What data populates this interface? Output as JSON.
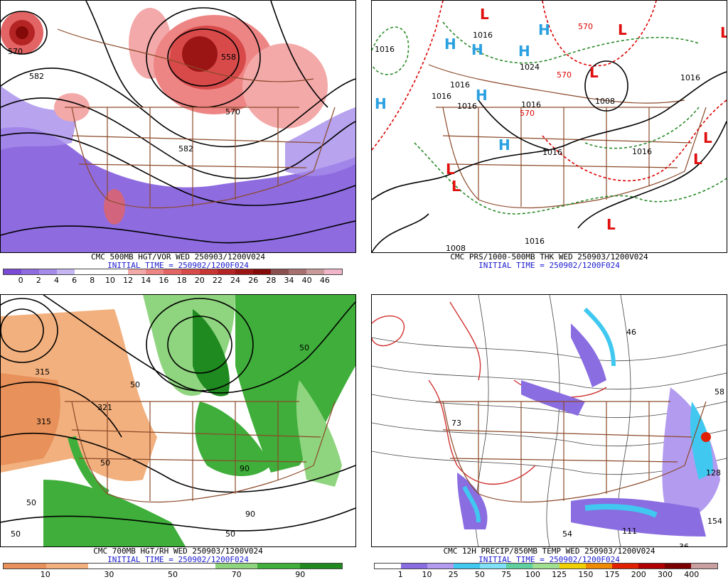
{
  "panels": [
    {
      "id": "vorticity",
      "caption": "CMC 500MB HGT/VOR WED 250903/1200V024",
      "initial_time": "INITIAL TIME = 250902/1200F024",
      "colorbar": {
        "colors": [
          "#7a4ad6",
          "#8f6be0",
          "#a58cea",
          "#c5b6f2",
          "#ffffff",
          "#ffffff",
          "#ffffff",
          "#f4a9a9",
          "#ee8585",
          "#e26464",
          "#d84a4a",
          "#c83535",
          "#b42424",
          "#9c1515",
          "#840a0a",
          "#8a4f4f",
          "#a86f6f",
          "#c99a9a",
          "#f0b6c8"
        ],
        "ticks": [
          "0",
          "2",
          "4",
          "6",
          "8",
          "10",
          "12",
          "14",
          "16",
          "18",
          "20",
          "22",
          "24",
          "26",
          "28",
          "34",
          "40",
          "46"
        ]
      },
      "contour_labels": [
        "570",
        "582",
        "558",
        "570",
        "582"
      ]
    },
    {
      "id": "pressure",
      "caption": "CMC PRS/1000-500MB THK WED 250903/1200V024",
      "initial_time": "INITIAL TIME = 250902/1200F024",
      "isobar_labels": [
        "1016",
        "1016",
        "1016",
        "1016",
        "1024",
        "1016",
        "1016",
        "1008",
        "1016",
        "1016",
        "1016",
        "1008",
        "1016"
      ],
      "thickness_labels": [
        "570",
        "570",
        "570"
      ],
      "high_symbols": [
        "H",
        "H",
        "H",
        "H",
        "H",
        "H",
        "H"
      ],
      "low_symbols": [
        "L",
        "L",
        "L",
        "L",
        "L",
        "L",
        "L",
        "L",
        "L"
      ]
    },
    {
      "id": "rh",
      "caption": "CMC 700MB HGT/RH WED 250903/1200V024",
      "initial_time": "INITIAL TIME = 250902/1200F024",
      "colorbar": {
        "colors": [
          "#e8915a",
          "#f2b07e",
          "#ffffff",
          "#ffffff",
          "#ffffff",
          "#8fd47f",
          "#3fae3a",
          "#1f8a1f"
        ],
        "ticks": [
          "10",
          "30",
          "50",
          "70",
          "90"
        ]
      },
      "contour_labels": [
        "315",
        "321",
        "315",
        "50",
        "50",
        "50",
        "90",
        "50",
        "50",
        "50",
        "90"
      ]
    },
    {
      "id": "precip",
      "caption": "CMC 12H PRECIP/850MB TEMP WED 250903/1200V024",
      "initial_time": "INITIAL TIME = 250902/1200F024",
      "colorbar": {
        "colors": [
          "#ffffff",
          "#8a6de0",
          "#b39bf0",
          "#40c8f0",
          "#80e0f8",
          "#60d0a0",
          "#a0e090",
          "#f0d000",
          "#f08a00",
          "#e02000",
          "#b00000",
          "#7a0000",
          "#c8a0a0"
        ],
        "ticks": [
          "1",
          "10",
          "25",
          "50",
          "75",
          "100",
          "125",
          "150",
          "175",
          "200",
          "300",
          "400"
        ]
      },
      "max_labels": [
        "54",
        "111",
        "36",
        "154",
        "58",
        "128",
        "46",
        "73"
      ]
    }
  ]
}
